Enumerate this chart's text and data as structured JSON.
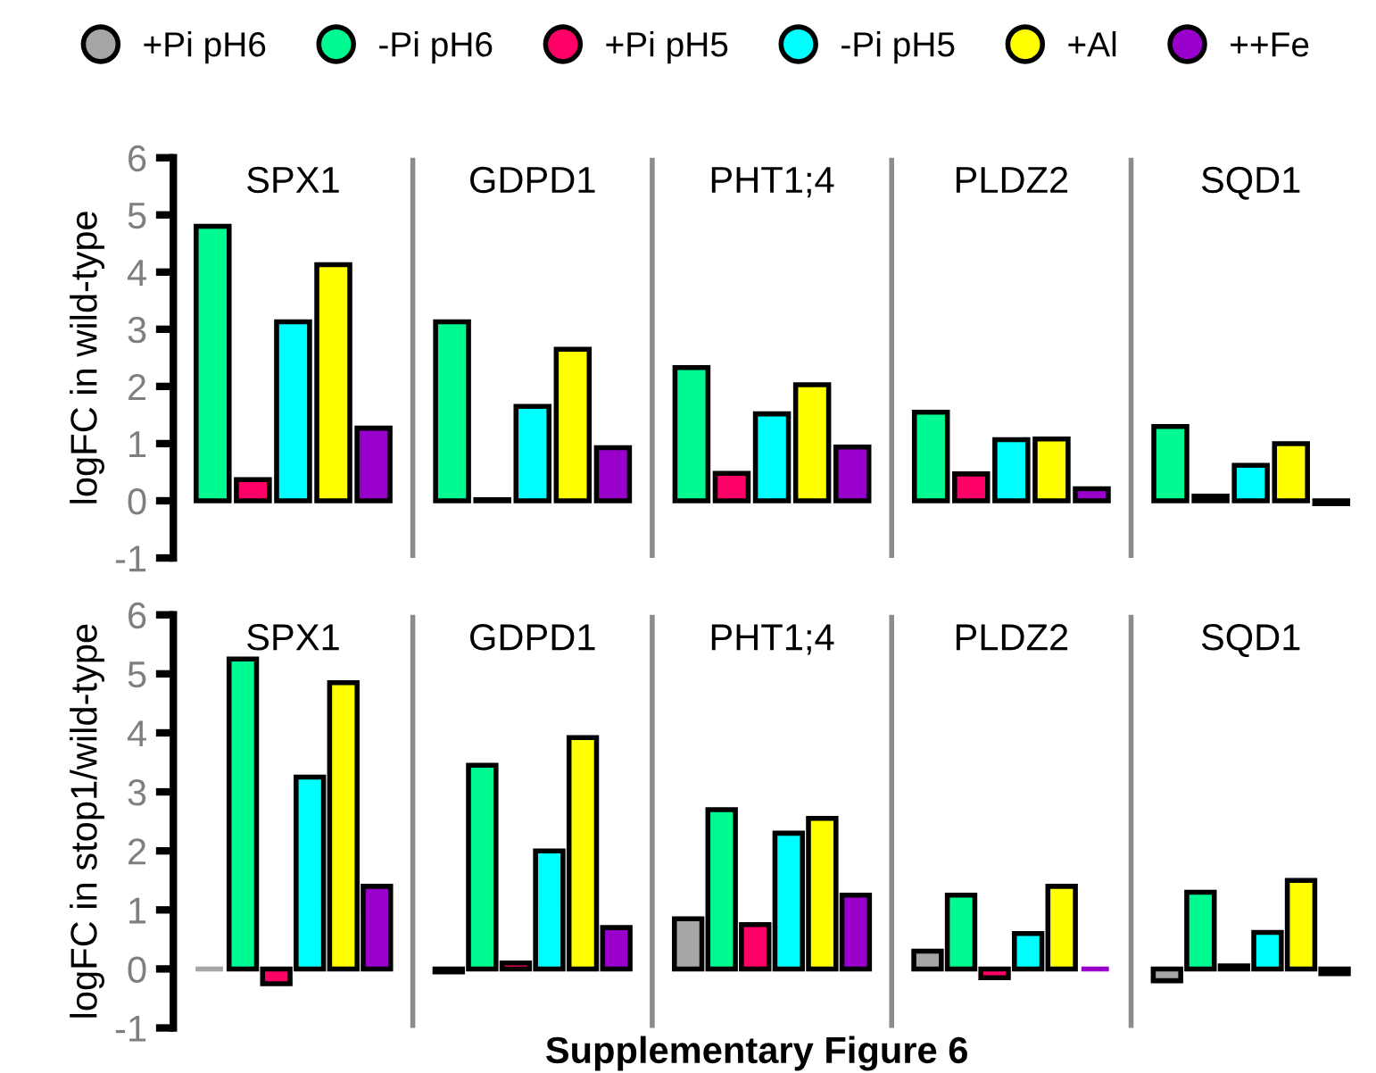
{
  "chart_data": [
    {
      "type": "bar",
      "ylabel": "logFC in wild-type",
      "categories": [
        "SPX1",
        "GDPD1",
        "PHT1;4",
        "PLDZ2",
        "SQD1"
      ],
      "ylim": [
        -1,
        6
      ],
      "yticks": [
        -1,
        0,
        1,
        2,
        3,
        4,
        5,
        6
      ],
      "grid": false,
      "legend": false,
      "series": [
        {
          "color": "#00fa92",
          "values": [
            4.8,
            3.13,
            2.33,
            1.55,
            1.3
          ]
        },
        {
          "color": "#ff0066",
          "values": [
            0.37,
            0.02,
            0.48,
            0.47,
            0.08
          ]
        },
        {
          "color": "#00ffff",
          "values": [
            3.13,
            1.65,
            1.52,
            1.07,
            0.62
          ]
        },
        {
          "color": "#ffff00",
          "values": [
            4.13,
            2.65,
            2.03,
            1.08,
            1.0
          ]
        },
        {
          "color": "#9900cc",
          "values": [
            1.27,
            0.93,
            0.94,
            0.21,
            -0.05
          ]
        }
      ]
    },
    {
      "type": "bar",
      "ylabel": "logFC in stop1/wild-type",
      "categories": [
        "SPX1",
        "GDPD1",
        "PHT1;4",
        "PLDZ2",
        "SQD1"
      ],
      "ylim": [
        -1,
        6
      ],
      "yticks": [
        -1,
        0,
        1,
        2,
        3,
        4,
        5,
        6
      ],
      "grid": false,
      "legend": "top",
      "annotations": [
        "Supplementary Figure 6"
      ],
      "series": [
        {
          "name": "+Pi pH6",
          "color": "#a6a6a6",
          "values": [
            0.0,
            -0.05,
            0.85,
            0.3,
            -0.2
          ]
        },
        {
          "name": "-Pi pH6",
          "color": "#00fa92",
          "values": [
            5.25,
            3.45,
            2.7,
            1.25,
            1.3
          ]
        },
        {
          "name": "+Pi pH5",
          "color": "#ff0066",
          "values": [
            -0.25,
            0.1,
            0.75,
            -0.15,
            0.05
          ]
        },
        {
          "name": "-Pi pH5",
          "color": "#00ffff",
          "values": [
            3.25,
            2.0,
            2.3,
            0.6,
            0.62
          ]
        },
        {
          "name": "+Al",
          "color": "#ffff00",
          "values": [
            4.85,
            3.92,
            2.55,
            1.4,
            1.5
          ]
        },
        {
          "name": "++Fe",
          "color": "#9900cc",
          "values": [
            1.4,
            0.7,
            1.25,
            0.0,
            -0.08
          ]
        }
      ]
    }
  ]
}
